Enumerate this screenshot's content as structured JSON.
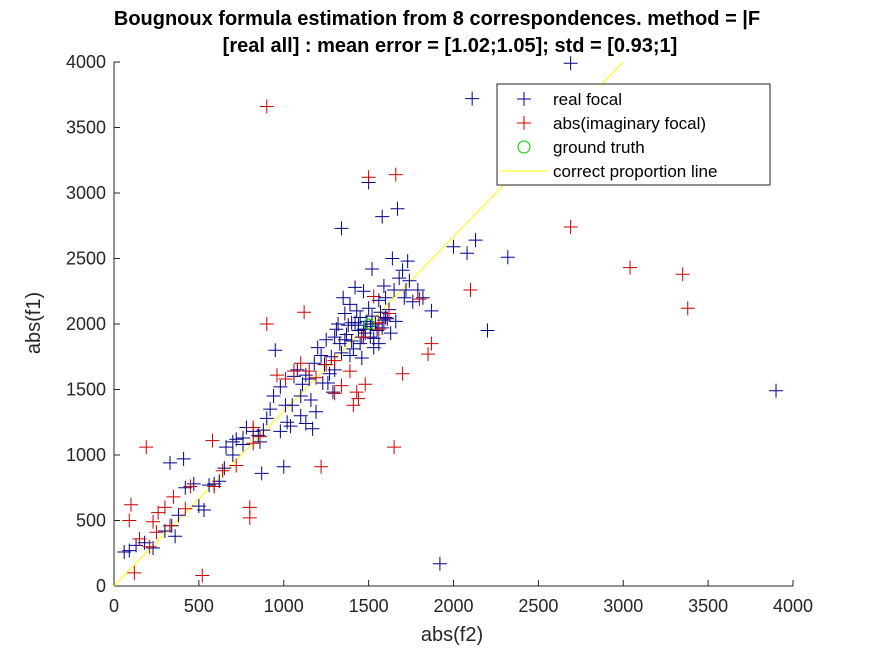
{
  "chart_data": {
    "type": "scatter",
    "title_line1": "Bougnoux formula estimation from 8 correspondences.  method = |F",
    "title_line2": "[real all] : mean error = [1.02;1.05]; std = [0.93;1]",
    "xlabel": "abs(f2)",
    "ylabel": "abs(f1)",
    "xlim": [
      0,
      4000
    ],
    "ylim": [
      0,
      4000
    ],
    "xticks": [
      0,
      500,
      1000,
      1500,
      2000,
      2500,
      3000,
      3500,
      4000
    ],
    "yticks": [
      0,
      500,
      1000,
      1500,
      2000,
      2500,
      3000,
      3500,
      4000
    ],
    "grid": false,
    "legend_position": "top-right",
    "legend": [
      {
        "label": "real focal",
        "marker": "+",
        "color": "#00008b"
      },
      {
        "label": "abs(imaginary focal)",
        "marker": "+",
        "color": "#cc0000"
      },
      {
        "label": "ground truth",
        "marker": "o",
        "color": "#00cc00"
      },
      {
        "label": "correct proportion line",
        "marker": "line",
        "color": "#ffff00"
      }
    ],
    "series": [
      {
        "name": "real focal",
        "color": "#00008b",
        "points": [
          [
            60,
            260
          ],
          [
            90,
            270
          ],
          [
            130,
            310
          ],
          [
            180,
            330
          ],
          [
            230,
            290
          ],
          [
            300,
            420
          ],
          [
            340,
            460
          ],
          [
            360,
            380
          ],
          [
            380,
            540
          ],
          [
            330,
            940
          ],
          [
            410,
            970
          ],
          [
            420,
            750
          ],
          [
            470,
            780
          ],
          [
            500,
            610
          ],
          [
            530,
            580
          ],
          [
            560,
            770
          ],
          [
            590,
            780
          ],
          [
            620,
            800
          ],
          [
            650,
            900
          ],
          [
            700,
            1000
          ],
          [
            720,
            1120
          ],
          [
            760,
            1080
          ],
          [
            780,
            1210
          ],
          [
            820,
            1180
          ],
          [
            860,
            1100
          ],
          [
            870,
            860
          ],
          [
            900,
            1280
          ],
          [
            920,
            1350
          ],
          [
            940,
            1450
          ],
          [
            950,
            1800
          ],
          [
            980,
            1520
          ],
          [
            1000,
            910
          ],
          [
            1010,
            1380
          ],
          [
            1040,
            1220
          ],
          [
            1060,
            1600
          ],
          [
            1080,
            1650
          ],
          [
            1100,
            1300
          ],
          [
            1110,
            1540
          ],
          [
            1130,
            1240
          ],
          [
            1150,
            1580
          ],
          [
            1160,
            1420
          ],
          [
            1180,
            1700
          ],
          [
            1190,
            1330
          ],
          [
            1200,
            1820
          ],
          [
            1220,
            1760
          ],
          [
            1240,
            1690
          ],
          [
            1250,
            1880
          ],
          [
            1260,
            1550
          ],
          [
            1280,
            1750
          ],
          [
            1290,
            1480
          ],
          [
            1300,
            1900
          ],
          [
            1310,
            1960
          ],
          [
            1320,
            2000
          ],
          [
            1330,
            1850
          ],
          [
            1340,
            1780
          ],
          [
            1350,
            2200
          ],
          [
            1360,
            2080
          ],
          [
            1370,
            1920
          ],
          [
            1380,
            1990
          ],
          [
            1390,
            2150
          ],
          [
            1400,
            1870
          ],
          [
            1410,
            1810
          ],
          [
            1420,
            2010
          ],
          [
            1430,
            2100
          ],
          [
            1440,
            1950
          ],
          [
            1450,
            2050
          ],
          [
            1460,
            1900
          ],
          [
            1470,
            2250
          ],
          [
            1480,
            1960
          ],
          [
            1490,
            2020
          ],
          [
            1500,
            2120
          ],
          [
            1510,
            1980
          ],
          [
            1520,
            2060
          ],
          [
            1530,
            1890
          ],
          [
            1540,
            2000
          ],
          [
            1550,
            1950
          ],
          [
            1560,
            2180
          ],
          [
            1570,
            2090
          ],
          [
            1580,
            1970
          ],
          [
            1590,
            2030
          ],
          [
            1600,
            2200
          ],
          [
            1610,
            2040
          ],
          [
            1620,
            2110
          ],
          [
            1630,
            1930
          ],
          [
            1640,
            2500
          ],
          [
            1650,
            2260
          ],
          [
            1660,
            2020
          ],
          [
            1680,
            2350
          ],
          [
            1700,
            2410
          ],
          [
            1720,
            2260
          ],
          [
            1740,
            2330
          ],
          [
            1760,
            2170
          ],
          [
            1790,
            2260
          ],
          [
            1820,
            2200
          ],
          [
            1360,
            1880
          ],
          [
            1400,
            2010
          ],
          [
            1440,
            1990
          ],
          [
            1480,
            1930
          ],
          [
            1520,
            2000
          ],
          [
            1470,
            1960
          ],
          [
            1340,
            2730
          ],
          [
            1500,
            3080
          ],
          [
            1580,
            2820
          ],
          [
            1670,
            2880
          ],
          [
            1870,
            2100
          ],
          [
            1920,
            170
          ],
          [
            2000,
            2590
          ],
          [
            2080,
            2540
          ],
          [
            2110,
            3720
          ],
          [
            2130,
            2640
          ],
          [
            2200,
            1950
          ],
          [
            2320,
            2510
          ],
          [
            2690,
            3990
          ],
          [
            3900,
            1490
          ],
          [
            1520,
            2420
          ],
          [
            1590,
            2290
          ],
          [
            1730,
            2480
          ],
          [
            1710,
            2200
          ],
          [
            1560,
            1850
          ],
          [
            1420,
            2280
          ],
          [
            1050,
            1380
          ],
          [
            1130,
            1610
          ],
          [
            880,
            1190
          ],
          [
            700,
            1100
          ],
          [
            660,
            1060
          ],
          [
            760,
            1130
          ],
          [
            1170,
            1200
          ],
          [
            1230,
            1550
          ],
          [
            1020,
            1250
          ],
          [
            980,
            1180
          ],
          [
            850,
            1150
          ],
          [
            1100,
            1450
          ],
          [
            1300,
            1650
          ],
          [
            1270,
            1620
          ],
          [
            1390,
            1760
          ],
          [
            1460,
            1740
          ],
          [
            1530,
            1820
          ],
          [
            1510,
            1900
          ],
          [
            1450,
            1850
          ],
          [
            1600,
            2050
          ]
        ]
      },
      {
        "name": "abs(imaginary focal)",
        "color": "#cc0000",
        "points": [
          [
            100,
            620
          ],
          [
            90,
            500
          ],
          [
            120,
            100
          ],
          [
            150,
            360
          ],
          [
            190,
            1060
          ],
          [
            210,
            300
          ],
          [
            230,
            490
          ],
          [
            250,
            410
          ],
          [
            260,
            560
          ],
          [
            300,
            600
          ],
          [
            330,
            460
          ],
          [
            350,
            680
          ],
          [
            420,
            590
          ],
          [
            450,
            760
          ],
          [
            520,
            80
          ],
          [
            580,
            1110
          ],
          [
            590,
            760
          ],
          [
            640,
            880
          ],
          [
            720,
            920
          ],
          [
            800,
            600
          ],
          [
            800,
            520
          ],
          [
            820,
            1210
          ],
          [
            860,
            1140
          ],
          [
            900,
            2000
          ],
          [
            960,
            1610
          ],
          [
            1010,
            1580
          ],
          [
            1060,
            1640
          ],
          [
            1100,
            1700
          ],
          [
            1120,
            2090
          ],
          [
            1150,
            1640
          ],
          [
            1220,
            910
          ],
          [
            1250,
            1690
          ],
          [
            1300,
            1470
          ],
          [
            1340,
            1530
          ],
          [
            1410,
            1380
          ],
          [
            1440,
            1430
          ],
          [
            1480,
            1540
          ],
          [
            1500,
            3120
          ],
          [
            1560,
            2010
          ],
          [
            1650,
            1060
          ],
          [
            1660,
            3140
          ],
          [
            1700,
            1620
          ],
          [
            1800,
            2190
          ],
          [
            1850,
            1770
          ],
          [
            1870,
            1850
          ],
          [
            2100,
            2260
          ],
          [
            2690,
            2740
          ],
          [
            3040,
            2430
          ],
          [
            3350,
            2380
          ],
          [
            3380,
            2120
          ],
          [
            900,
            3660
          ],
          [
            1190,
            1590
          ],
          [
            1390,
            1640
          ],
          [
            1430,
            1480
          ],
          [
            820,
            1090
          ],
          [
            1300,
            1720
          ],
          [
            1470,
            1900
          ],
          [
            1530,
            2210
          ],
          [
            1620,
            2080
          ],
          [
            1560,
            1960
          ]
        ]
      },
      {
        "name": "ground truth",
        "color": "#00cc00",
        "points": [
          [
            1500,
            2000
          ]
        ]
      },
      {
        "name": "correct proportion line",
        "color": "#ffff00",
        "line": [
          [
            0,
            0
          ],
          [
            3000,
            4000
          ]
        ]
      }
    ]
  }
}
